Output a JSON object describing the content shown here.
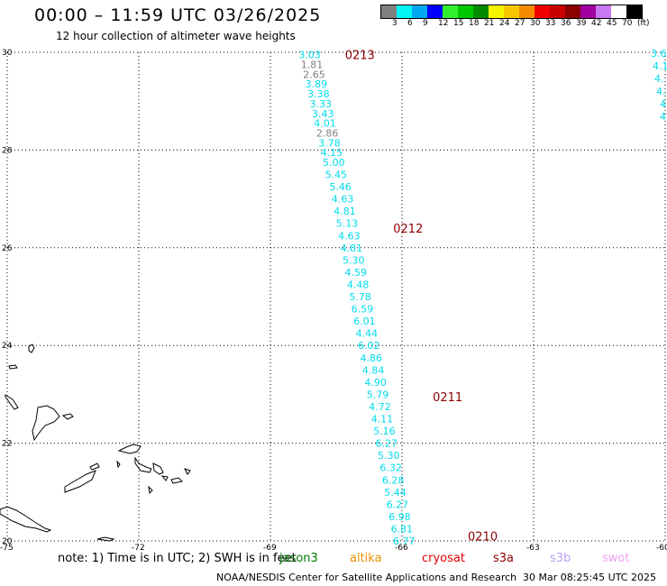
{
  "header": {
    "title": "00:00 – 11:59 UTC 03/26/2025",
    "subtitle": "12 hour collection of altimeter wave heights"
  },
  "legend": {
    "colors": [
      "#7f7f7f",
      "#00f5f5",
      "#00a8f0",
      "#0000ff",
      "#30f030",
      "#00c800",
      "#008c00",
      "#f5f500",
      "#f5c800",
      "#f58c00",
      "#f00000",
      "#c80000",
      "#8c0000",
      "#a000a0",
      "#c878f0",
      "#ffffff",
      "#000000"
    ],
    "labels": [
      "3",
      "6",
      "9",
      "12",
      "15",
      "18",
      "21",
      "24",
      "27",
      "30",
      "33",
      "36",
      "39",
      "42",
      "45",
      "70",
      "(ft)"
    ]
  },
  "map": {
    "lon_ticks": [
      "-75",
      "-72",
      "-69",
      "-66",
      "-63",
      "-60"
    ],
    "lat_ticks": [
      "30",
      "28",
      "26",
      "24",
      "22",
      "20"
    ],
    "pass_labels": [
      {
        "text": "0213",
        "lon": -67.3,
        "lat": 29.95
      },
      {
        "text": "0212",
        "lon": -66.2,
        "lat": 26.4
      },
      {
        "text": "0211",
        "lon": -65.3,
        "lat": 22.95
      },
      {
        "text": "0210",
        "lon": -64.5,
        "lat": 20.1
      }
    ],
    "track": [
      {
        "text": "3.03",
        "lon": -68.15,
        "lat": 29.95,
        "c": "cyan"
      },
      {
        "text": "1.81",
        "lon": -68.1,
        "lat": 29.75,
        "c": "gray"
      },
      {
        "text": "2.65",
        "lon": -68.05,
        "lat": 29.55,
        "c": "gray"
      },
      {
        "text": "3.89",
        "lon": -68.0,
        "lat": 29.35,
        "c": "cyan"
      },
      {
        "text": "3.38",
        "lon": -67.95,
        "lat": 29.15,
        "c": "cyan"
      },
      {
        "text": "3.33",
        "lon": -67.9,
        "lat": 28.95,
        "c": "cyan"
      },
      {
        "text": "3.43",
        "lon": -67.85,
        "lat": 28.75,
        "c": "cyan"
      },
      {
        "text": "4.01",
        "lon": -67.8,
        "lat": 28.55,
        "c": "cyan"
      },
      {
        "text": "2.86",
        "lon": -67.75,
        "lat": 28.35,
        "c": "gray"
      },
      {
        "text": "3.78",
        "lon": -67.7,
        "lat": 28.15,
        "c": "cyan"
      },
      {
        "text": "4.15",
        "lon": -67.65,
        "lat": 27.95,
        "c": "cyan"
      },
      {
        "text": "5.00",
        "lon": -67.6,
        "lat": 27.75,
        "c": "cyan"
      },
      {
        "text": "5.45",
        "lon": -67.55,
        "lat": 27.5,
        "c": "cyan"
      },
      {
        "text": "5.46",
        "lon": -67.45,
        "lat": 27.25,
        "c": "cyan"
      },
      {
        "text": "4.63",
        "lon": -67.4,
        "lat": 27.0,
        "c": "cyan"
      },
      {
        "text": "4.81",
        "lon": -67.35,
        "lat": 26.75,
        "c": "cyan"
      },
      {
        "text": "5.13",
        "lon": -67.3,
        "lat": 26.5,
        "c": "cyan"
      },
      {
        "text": "4.63",
        "lon": -67.25,
        "lat": 26.25,
        "c": "cyan"
      },
      {
        "text": "4.81",
        "lon": -67.2,
        "lat": 26.0,
        "c": "cyan"
      },
      {
        "text": "5.30",
        "lon": -67.15,
        "lat": 25.75,
        "c": "cyan"
      },
      {
        "text": "4.59",
        "lon": -67.1,
        "lat": 25.5,
        "c": "cyan"
      },
      {
        "text": "4.48",
        "lon": -67.05,
        "lat": 25.25,
        "c": "cyan"
      },
      {
        "text": "5.78",
        "lon": -67.0,
        "lat": 25.0,
        "c": "cyan"
      },
      {
        "text": "6.59",
        "lon": -66.95,
        "lat": 24.75,
        "c": "cyan"
      },
      {
        "text": "6.01",
        "lon": -66.9,
        "lat": 24.5,
        "c": "cyan"
      },
      {
        "text": "4.44",
        "lon": -66.85,
        "lat": 24.25,
        "c": "cyan"
      },
      {
        "text": "6.02",
        "lon": -66.8,
        "lat": 24.0,
        "c": "cyan"
      },
      {
        "text": "4.86",
        "lon": -66.75,
        "lat": 23.75,
        "c": "cyan"
      },
      {
        "text": "4.84",
        "lon": -66.7,
        "lat": 23.5,
        "c": "cyan"
      },
      {
        "text": "4.90",
        "lon": -66.65,
        "lat": 23.25,
        "c": "cyan"
      },
      {
        "text": "5.79",
        "lon": -66.6,
        "lat": 23.0,
        "c": "cyan"
      },
      {
        "text": "4.72",
        "lon": -66.55,
        "lat": 22.75,
        "c": "cyan"
      },
      {
        "text": "4.11",
        "lon": -66.5,
        "lat": 22.5,
        "c": "cyan"
      },
      {
        "text": "5.16",
        "lon": -66.45,
        "lat": 22.25,
        "c": "cyan"
      },
      {
        "text": "6.27",
        "lon": -66.4,
        "lat": 22.0,
        "c": "cyan"
      },
      {
        "text": "5.30",
        "lon": -66.35,
        "lat": 21.75,
        "c": "cyan"
      },
      {
        "text": "6.32",
        "lon": -66.3,
        "lat": 21.5,
        "c": "cyan"
      },
      {
        "text": "6.28",
        "lon": -66.25,
        "lat": 21.25,
        "c": "cyan"
      },
      {
        "text": "5.44",
        "lon": -66.2,
        "lat": 21.0,
        "c": "cyan"
      },
      {
        "text": "6.27",
        "lon": -66.15,
        "lat": 20.75,
        "c": "cyan"
      },
      {
        "text": "6.98",
        "lon": -66.1,
        "lat": 20.5,
        "c": "cyan"
      },
      {
        "text": "6.81",
        "lon": -66.05,
        "lat": 20.25,
        "c": "cyan"
      },
      {
        "text": "6.77",
        "lon": -66.0,
        "lat": 20.0,
        "c": "cyan"
      }
    ],
    "right_edge_values": [
      "3.6",
      "4.1",
      "4.",
      "4.",
      "4.",
      "4"
    ],
    "track_colors": {
      "cyan": "#00dcec",
      "gray": "#808080",
      "pass": "#8c0000"
    }
  },
  "footer": {
    "note": "note: 1) Time is in UTC; 2) SWH is in feet",
    "missions": [
      {
        "text": "jason3",
        "color": "#007a00"
      },
      {
        "text": "altika",
        "color": "#e89000"
      },
      {
        "text": "cryosat",
        "color": "#e00000"
      },
      {
        "text": "s3a",
        "color": "#8c0000"
      },
      {
        "text": "s3b",
        "color": "#b8a0f0"
      },
      {
        "text": "swot",
        "color": "#f0a0f0"
      }
    ],
    "credit": "NOAA/NESDIS Center for Satellite Applications and Research",
    "generated": "30 Mar 08:25:45 UTC 2025"
  }
}
